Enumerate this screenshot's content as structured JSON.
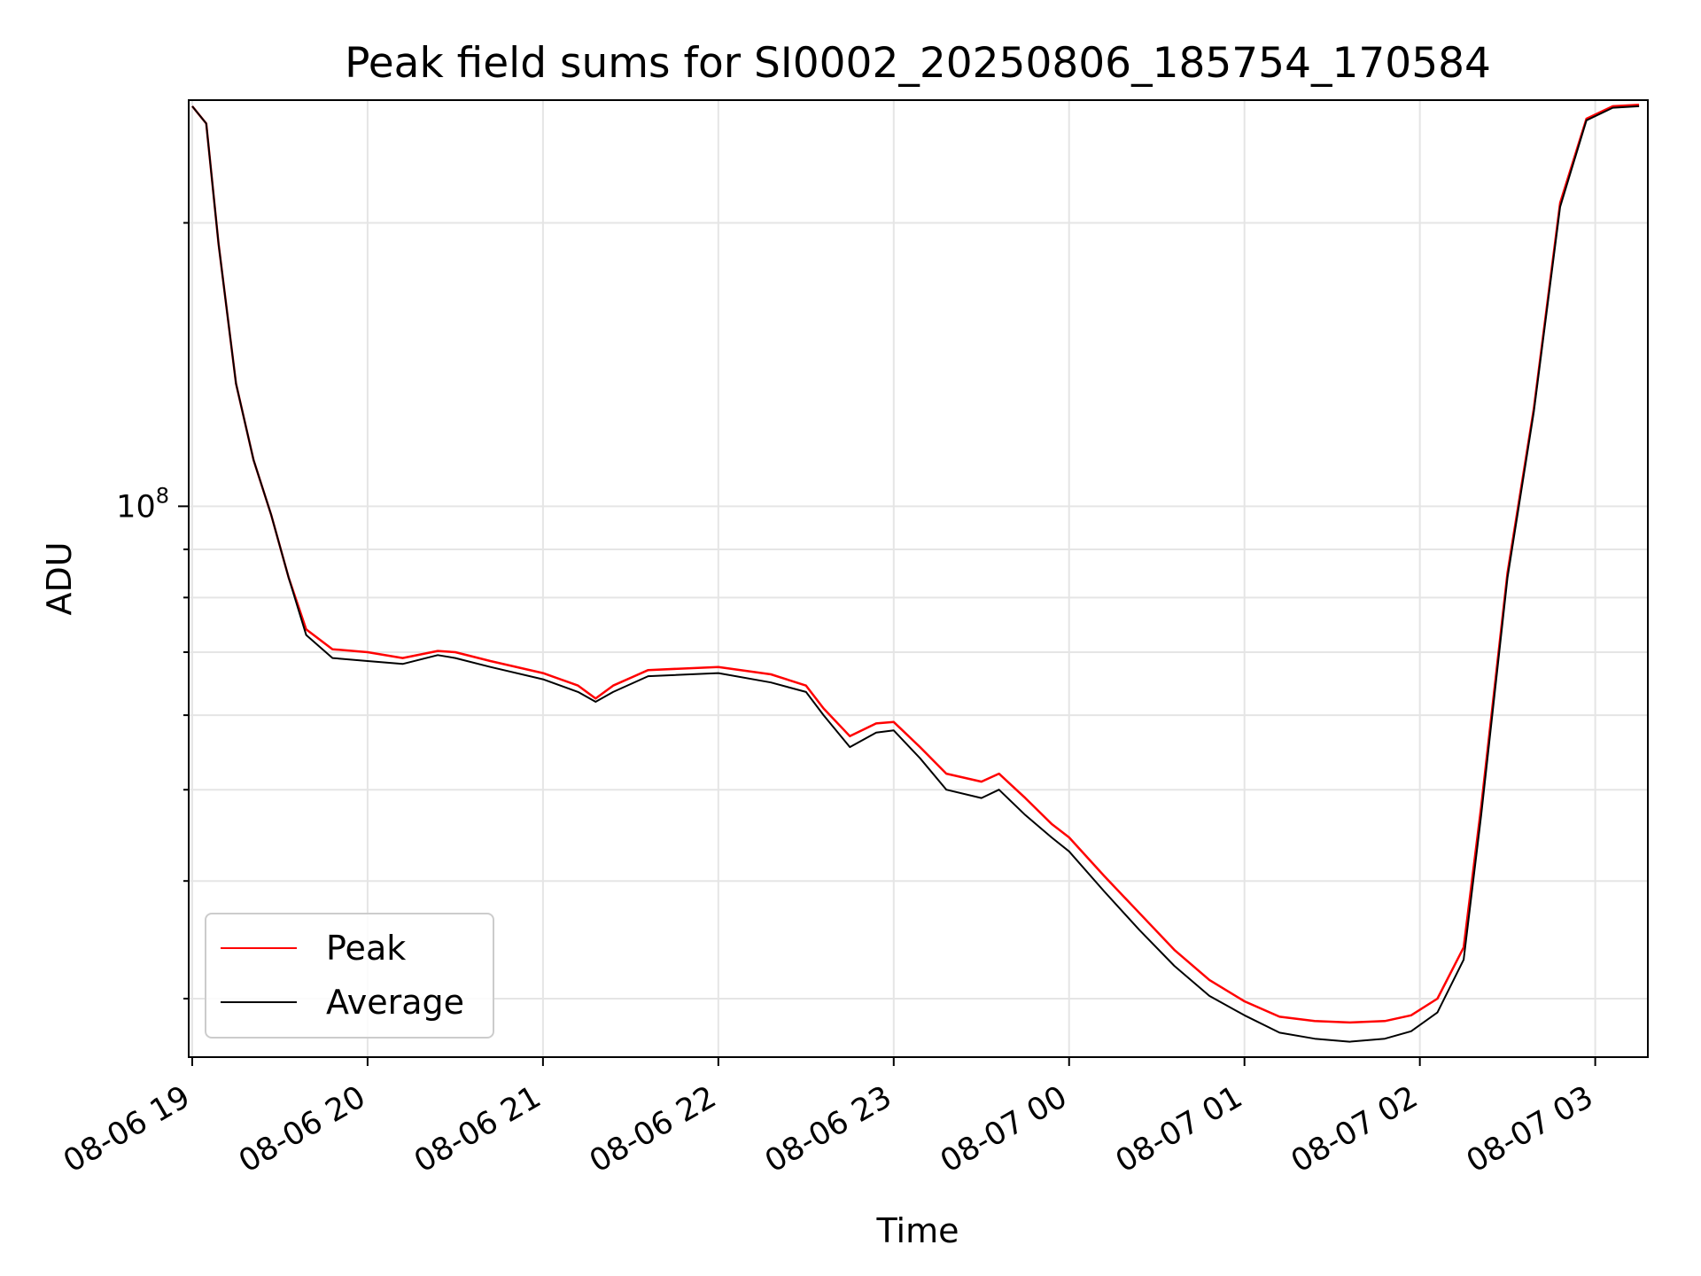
{
  "chart_data": {
    "type": "line",
    "title": "Peak field sums for SI0002_20250806_185754_170584",
    "xlabel": "Time",
    "ylabel": "ADU",
    "yscale": "log",
    "grid": true,
    "legend_position": "lower-left",
    "x_ticks": [
      "08-06 19",
      "08-06 20",
      "08-06 21",
      "08-06 22",
      "08-06 23",
      "08-07 00",
      "08-07 01",
      "08-07 02",
      "08-07 03"
    ],
    "y_tick_base": "10",
    "y_tick_exp": "8",
    "x_range_hours": [
      18.98,
      27.3
    ],
    "y_range": [
      26000000,
      270000000
    ],
    "series": [
      {
        "name": "Peak",
        "color": "#ff0000",
        "x_hours": [
          19.0,
          19.08,
          19.15,
          19.25,
          19.35,
          19.45,
          19.55,
          19.65,
          19.8,
          20.0,
          20.2,
          20.4,
          20.5,
          20.7,
          21.0,
          21.2,
          21.3,
          21.4,
          21.6,
          22.0,
          22.3,
          22.5,
          22.6,
          22.75,
          22.9,
          23.0,
          23.15,
          23.3,
          23.5,
          23.6,
          23.75,
          23.9,
          24.0,
          24.2,
          24.4,
          24.6,
          24.8,
          25.0,
          25.2,
          25.4,
          25.6,
          25.8,
          25.95,
          26.1,
          26.25,
          26.35,
          26.5,
          26.65,
          26.8,
          26.95,
          27.1,
          27.25
        ],
        "y_values": [
          266000000,
          255000000,
          190000000,
          135000000,
          112000000,
          98000000,
          84000000,
          74000000,
          70500000,
          70000000,
          69000000,
          70200000,
          70000000,
          68500000,
          66500000,
          64500000,
          62500000,
          64500000,
          67000000,
          67500000,
          66300000,
          64500000,
          61000000,
          57000000,
          58800000,
          59000000,
          55500000,
          52000000,
          51000000,
          52000000,
          49000000,
          46000000,
          44500000,
          40500000,
          37000000,
          33800000,
          31400000,
          29800000,
          28700000,
          28400000,
          28300000,
          28400000,
          28800000,
          30000000,
          34000000,
          48000000,
          85000000,
          127000000,
          210000000,
          258000000,
          266000000,
          267000000
        ]
      },
      {
        "name": "Average",
        "color": "#000000",
        "x_hours": [
          19.0,
          19.08,
          19.15,
          19.25,
          19.35,
          19.45,
          19.55,
          19.65,
          19.8,
          20.0,
          20.2,
          20.4,
          20.5,
          20.7,
          21.0,
          21.2,
          21.3,
          21.4,
          21.6,
          22.0,
          22.3,
          22.5,
          22.6,
          22.75,
          22.9,
          23.0,
          23.15,
          23.3,
          23.5,
          23.6,
          23.75,
          23.9,
          24.0,
          24.2,
          24.4,
          24.6,
          24.8,
          25.0,
          25.2,
          25.4,
          25.6,
          25.8,
          25.95,
          26.1,
          26.25,
          26.35,
          26.5,
          26.65,
          26.8,
          26.95,
          27.1,
          27.25
        ],
        "y_values": [
          266000000,
          255000000,
          190000000,
          135000000,
          112000000,
          98000000,
          84000000,
          73000000,
          69000000,
          68500000,
          68000000,
          69500000,
          69000000,
          67500000,
          65500000,
          63500000,
          62000000,
          63500000,
          66000000,
          66500000,
          65000000,
          63500000,
          60000000,
          55500000,
          57500000,
          57800000,
          54000000,
          50000000,
          49000000,
          50000000,
          47000000,
          44500000,
          43000000,
          39000000,
          35500000,
          32500000,
          30200000,
          28800000,
          27600000,
          27200000,
          27000000,
          27200000,
          27700000,
          29000000,
          33000000,
          47000000,
          84000000,
          126000000,
          208000000,
          257000000,
          265000000,
          266000000
        ]
      }
    ]
  }
}
